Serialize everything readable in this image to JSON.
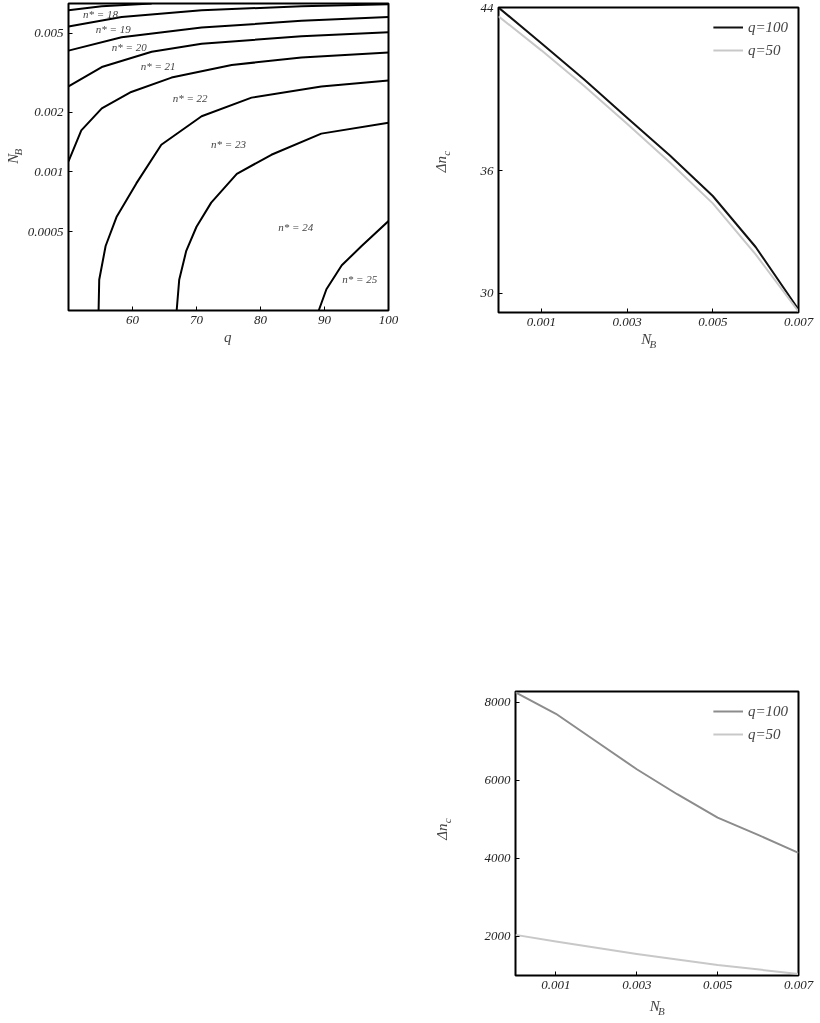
{
  "chart_data": [
    {
      "type": "line",
      "xlabel": "q",
      "ylabel": "N$_{B}$",
      "log": "y",
      "xlim": [
        50,
        100
      ],
      "ylim": [
        0.0002,
        0.00707
      ],
      "xticks": [
        60,
        70,
        80,
        90,
        100
      ],
      "yticks": [
        0.0005,
        0.001,
        0.002,
        0.005
      ],
      "series": [
        {
          "color": "#000000",
          "x": [
            50,
            55.2,
            63.0
          ],
          "values": [
            0.00654,
            0.00684,
            0.00707
          ]
        },
        {
          "color": "#000000",
          "x": [
            50,
            58.3,
            70.8,
            86.4,
            100
          ],
          "values": [
            0.00541,
            0.00605,
            0.00654,
            0.00684,
            0.007
          ]
        },
        {
          "color": "#000000",
          "x": [
            50,
            58.3,
            70.8,
            86.4,
            100
          ],
          "values": [
            0.00409,
            0.00478,
            0.00535,
            0.00578,
            0.00605
          ]
        },
        {
          "color": "#000000",
          "x": [
            50,
            55.2,
            63.0,
            70.8,
            86.4,
            100
          ],
          "values": [
            0.0027,
            0.00338,
            0.00404,
            0.00443,
            0.00483,
            0.00506
          ]
        },
        {
          "color": "#000000",
          "x": [
            50,
            52.0,
            55.2,
            59.8,
            66.1,
            75.5,
            86.4,
            100
          ],
          "values": [
            0.00113,
            0.00162,
            0.00209,
            0.00253,
            0.00299,
            0.00346,
            0.00378,
            0.004
          ]
        },
        {
          "color": "#000000",
          "x": [
            54.7,
            54.8,
            55.8,
            57.5,
            60.6,
            64.5,
            70.8,
            78.6,
            89.5,
            100
          ],
          "values": [
            0.0002,
            0.000286,
            0.000423,
            0.000592,
            0.000875,
            0.00137,
            0.00191,
            0.00237,
            0.0027,
            0.00289
          ]
        },
        {
          "color": "#000000",
          "x": [
            66.9,
            67.3,
            68.4,
            70.0,
            72.3,
            76.3,
            81.7,
            89.5,
            100
          ],
          "values": [
            0.0002,
            0.000286,
            0.0004,
            0.000529,
            0.0007,
            0.000978,
            0.00122,
            0.00156,
            0.00177
          ]
        },
        {
          "color": "#000000",
          "x": [
            89.1,
            90.3,
            92.7,
            95.8,
            100
          ],
          "values": [
            0.0002,
            0.000256,
            0.000338,
            0.000423,
            0.000565
          ]
        }
      ],
      "annotations": [
        "n* = 18",
        "n* = 19",
        "n* = 20",
        "n* = 21",
        "n* = 22",
        "n* = 23",
        "n* = 24",
        "n* = 25"
      ]
    },
    {
      "type": "line",
      "xlabel": "N$_{B}$",
      "ylabel": "Δn$_{c}$",
      "xlim": [
        0,
        0.007
      ],
      "ylim": [
        29.05,
        44
      ],
      "xticks": [
        0.001,
        0.003,
        0.005,
        0.007
      ],
      "yticks": [
        30,
        36,
        44
      ],
      "legend": "top right",
      "series": [
        {
          "name": "q=100",
          "color": "#111111",
          "x": [
            0,
            0.001,
            0.002,
            0.003,
            0.004,
            0.005,
            0.006,
            0.007
          ],
          "values": [
            44,
            42.25,
            40.47,
            38.6,
            36.75,
            34.76,
            32.26,
            29.2
          ]
        },
        {
          "name": "q=50",
          "color": "#c8c8c8",
          "x": [
            0,
            0.001,
            0.002,
            0.003,
            0.004,
            0.005,
            0.006,
            0.007
          ],
          "values": [
            43.57,
            41.9,
            40.15,
            38.3,
            36.4,
            34.4,
            31.9,
            29.1
          ]
        }
      ]
    },
    {
      "type": "line",
      "xlabel": "N$_{B}$",
      "ylabel": "Δn$_{c}$",
      "xlim": [
        0,
        0.007
      ],
      "ylim": [
        1000,
        8270
      ],
      "xticks": [
        0.001,
        0.003,
        0.005,
        0.007
      ],
      "yticks": [
        2000,
        4000,
        6000,
        8000
      ],
      "legend": "top right",
      "series": [
        {
          "name": "q=100",
          "color": "#8c8c8c",
          "x": [
            0,
            0.001,
            0.002,
            0.003,
            0.004,
            0.005,
            0.006,
            0.007
          ],
          "values": [
            8250,
            7700,
            6990,
            6280,
            5640,
            5040,
            4600,
            4140
          ]
        },
        {
          "name": "q=50",
          "color": "#c8c8c8",
          "x": [
            0,
            0.001,
            0.003,
            0.005,
            0.007
          ],
          "values": [
            2040,
            1870,
            1550,
            1270,
            1040
          ]
        }
      ]
    }
  ]
}
